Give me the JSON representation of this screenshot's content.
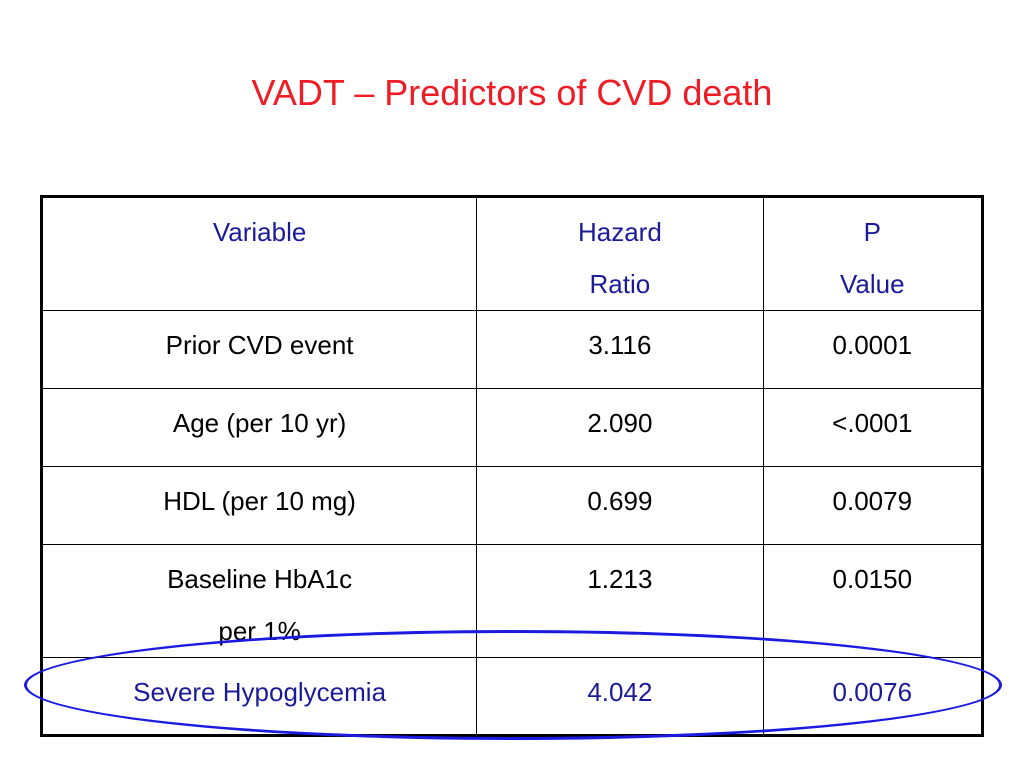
{
  "slide": {
    "title": "VADT – Predictors of CVD death"
  },
  "table": {
    "headers": [
      {
        "line1": "Variable",
        "line2": ""
      },
      {
        "line1": "Hazard",
        "line2": "Ratio"
      },
      {
        "line1": "P",
        "line2": "Value"
      }
    ],
    "rows": [
      {
        "variable": "Prior CVD event",
        "variable2": "",
        "hr": "3.116",
        "p": "0.0001"
      },
      {
        "variable": "Age (per 10 yr)",
        "variable2": "",
        "hr": "2.090",
        "p": "<.0001"
      },
      {
        "variable": "HDL (per 10 mg)",
        "variable2": "",
        "hr": "0.699",
        "p": "0.0079"
      },
      {
        "variable": "Baseline HbA1c",
        "variable2": "per 1%",
        "hr": "1.213",
        "p": "0.0150"
      },
      {
        "variable": "Severe Hypoglycemia",
        "variable2": "",
        "hr": "4.042",
        "p": "0.0076"
      }
    ]
  },
  "colors": {
    "title": "#ee1c25",
    "header_text": "#1b1b9a",
    "highlight_ellipse": "#1a1ae0"
  }
}
